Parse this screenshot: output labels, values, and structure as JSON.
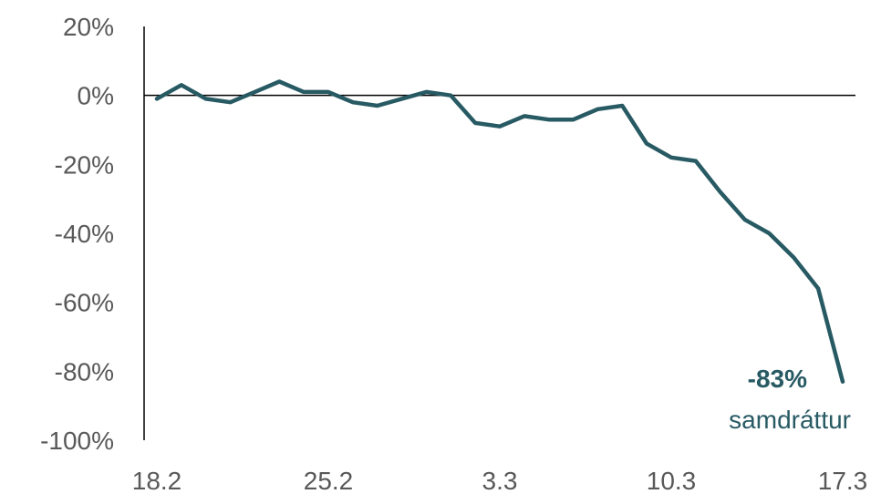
{
  "chart_data": {
    "type": "line",
    "title": "",
    "xlabel": "",
    "ylabel": "",
    "ylim": [
      -100,
      20
    ],
    "yticks": [
      20,
      0,
      -20,
      -40,
      -60,
      -80,
      -100
    ],
    "ytick_labels": [
      "20%",
      "0%",
      "-20%",
      "-40%",
      "-60%",
      "-80%",
      "-100%"
    ],
    "x_days": [
      0,
      1,
      2,
      3,
      4,
      5,
      6,
      7,
      8,
      9,
      10,
      11,
      12,
      13,
      14,
      15,
      16,
      17,
      18,
      19,
      20,
      21,
      22,
      23,
      24,
      25,
      26,
      27,
      28
    ],
    "xtick_days": [
      0,
      7,
      14,
      21,
      28
    ],
    "xtick_labels": [
      "18.2",
      "25.2",
      "3.3",
      "10.3",
      "17.3"
    ],
    "series": [
      {
        "color": "#285a64",
        "values": [
          -1,
          3,
          -1,
          -2,
          1,
          4,
          1,
          1,
          -2,
          -3,
          -1,
          1,
          0,
          -8,
          -9,
          -6,
          -7,
          -7,
          -4,
          -3,
          -14,
          -18,
          -19,
          -28,
          -36,
          -40,
          -47,
          -56,
          -83
        ]
      }
    ],
    "grid": false,
    "legend": "none",
    "annotation": {
      "value": "-83%",
      "text": "samdráttur",
      "color": "#285a64"
    }
  }
}
